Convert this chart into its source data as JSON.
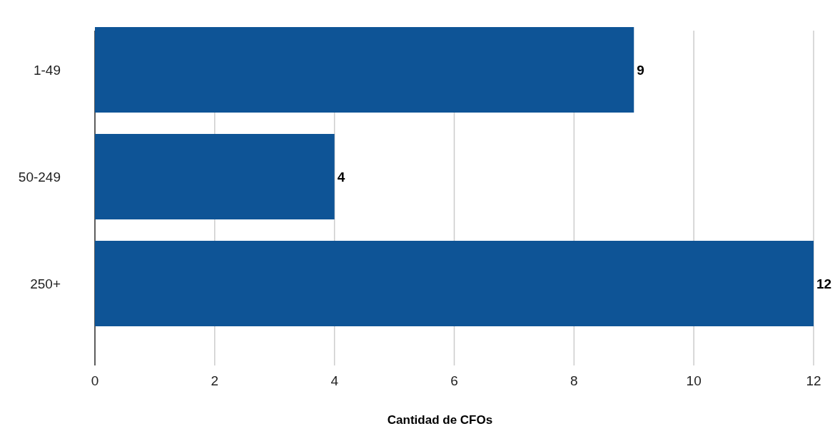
{
  "chart_data": {
    "type": "bar",
    "orientation": "horizontal",
    "xlabel": "Cantidad de CFOs",
    "categories": [
      "1-49",
      "50-249",
      "250+"
    ],
    "values": [
      9,
      4,
      12
    ],
    "color": "#0e5496",
    "xlim": [
      0,
      12
    ],
    "xticks": [
      0,
      2,
      4,
      6,
      8,
      10,
      12
    ],
    "grid": "x",
    "data_labels": true
  }
}
